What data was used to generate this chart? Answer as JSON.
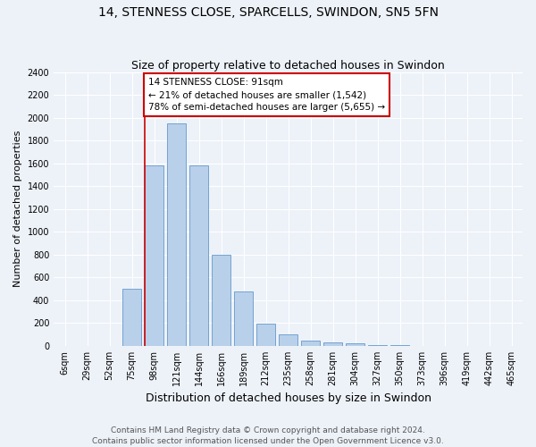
{
  "title1": "14, STENNESS CLOSE, SPARCELLS, SWINDON, SN5 5FN",
  "title2": "Size of property relative to detached houses in Swindon",
  "xlabel": "Distribution of detached houses by size in Swindon",
  "ylabel": "Number of detached properties",
  "categories": [
    "6sqm",
    "29sqm",
    "52sqm",
    "75sqm",
    "98sqm",
    "121sqm",
    "144sqm",
    "166sqm",
    "189sqm",
    "212sqm",
    "235sqm",
    "258sqm",
    "281sqm",
    "304sqm",
    "327sqm",
    "350sqm",
    "373sqm",
    "396sqm",
    "419sqm",
    "442sqm",
    "465sqm"
  ],
  "values": [
    0,
    0,
    0,
    500,
    1580,
    1950,
    1580,
    800,
    480,
    195,
    105,
    50,
    30,
    20,
    8,
    5,
    2,
    1,
    0,
    0,
    0
  ],
  "bar_color": "#b8d0ea",
  "bar_edge_color": "#6699cc",
  "background_color": "#edf2f9",
  "grid_color": "#ffffff",
  "annotation_text": "14 STENNESS CLOSE: 91sqm\n← 21% of detached houses are smaller (1,542)\n78% of semi-detached houses are larger (5,655) →",
  "annotation_box_color": "#ffffff",
  "annotation_box_edge_color": "#cc0000",
  "vline_color": "#cc0000",
  "ylim": [
    0,
    2400
  ],
  "yticks": [
    0,
    200,
    400,
    600,
    800,
    1000,
    1200,
    1400,
    1600,
    1800,
    2000,
    2200,
    2400
  ],
  "footer1": "Contains HM Land Registry data © Crown copyright and database right 2024.",
  "footer2": "Contains public sector information licensed under the Open Government Licence v3.0.",
  "title1_fontsize": 10,
  "title2_fontsize": 9,
  "xlabel_fontsize": 9,
  "ylabel_fontsize": 8,
  "tick_fontsize": 7,
  "annotation_fontsize": 7.5,
  "footer_fontsize": 6.5,
  "vline_x_index": 3.575
}
